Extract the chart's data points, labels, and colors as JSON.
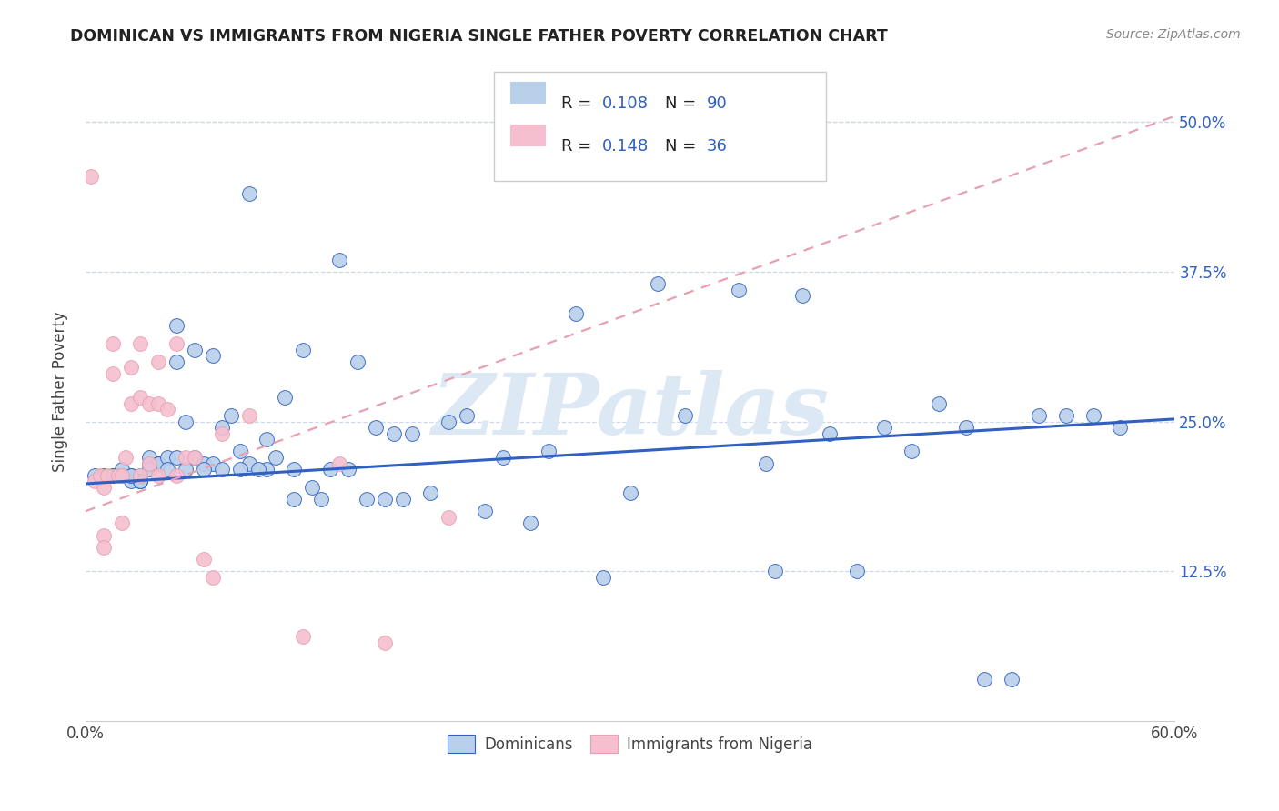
{
  "title": "DOMINICAN VS IMMIGRANTS FROM NIGERIA SINGLE FATHER POVERTY CORRELATION CHART",
  "source": "Source: ZipAtlas.com",
  "ylabel": "Single Father Poverty",
  "yticks": [
    0.0,
    0.125,
    0.25,
    0.375,
    0.5
  ],
  "ytick_labels": [
    "",
    "12.5%",
    "25.0%",
    "37.5%",
    "50.0%"
  ],
  "xlim": [
    0.0,
    0.6
  ],
  "ylim": [
    0.0,
    0.55
  ],
  "blue_color": "#b8d0ea",
  "pink_color": "#f5bfcf",
  "trend_blue": "#3060c0",
  "trend_pink": "#e8a0b0",
  "text_blue": "#3060c0",
  "grid_color": "#d0d8e8",
  "watermark": "ZIPatlas",
  "watermark_color": "#dde8f5",
  "blue_trend_start": 0.198,
  "blue_trend_end": 0.252,
  "pink_trend_start": 0.175,
  "pink_trend_end": 0.505,
  "blue_x": [
    0.005,
    0.01,
    0.01,
    0.015,
    0.02,
    0.02,
    0.02,
    0.02,
    0.025,
    0.025,
    0.03,
    0.03,
    0.03,
    0.03,
    0.035,
    0.035,
    0.04,
    0.04,
    0.04,
    0.045,
    0.05,
    0.05,
    0.05,
    0.055,
    0.06,
    0.06,
    0.065,
    0.07,
    0.07,
    0.075,
    0.08,
    0.085,
    0.09,
    0.09,
    0.1,
    0.1,
    0.105,
    0.11,
    0.115,
    0.12,
    0.125,
    0.13,
    0.135,
    0.14,
    0.145,
    0.15,
    0.155,
    0.16,
    0.165,
    0.17,
    0.175,
    0.18,
    0.19,
    0.2,
    0.21,
    0.22,
    0.23,
    0.245,
    0.255,
    0.27,
    0.285,
    0.3,
    0.315,
    0.33,
    0.36,
    0.375,
    0.38,
    0.395,
    0.41,
    0.425,
    0.44,
    0.455,
    0.47,
    0.485,
    0.495,
    0.51,
    0.525,
    0.54,
    0.555,
    0.57,
    0.015,
    0.025,
    0.035,
    0.045,
    0.055,
    0.065,
    0.075,
    0.085,
    0.095,
    0.115
  ],
  "blue_y": [
    0.205,
    0.205,
    0.205,
    0.205,
    0.205,
    0.205,
    0.205,
    0.21,
    0.2,
    0.205,
    0.2,
    0.2,
    0.205,
    0.2,
    0.215,
    0.22,
    0.215,
    0.215,
    0.215,
    0.22,
    0.33,
    0.3,
    0.22,
    0.25,
    0.31,
    0.22,
    0.215,
    0.305,
    0.215,
    0.245,
    0.255,
    0.225,
    0.44,
    0.215,
    0.235,
    0.21,
    0.22,
    0.27,
    0.185,
    0.31,
    0.195,
    0.185,
    0.21,
    0.385,
    0.21,
    0.3,
    0.185,
    0.245,
    0.185,
    0.24,
    0.185,
    0.24,
    0.19,
    0.25,
    0.255,
    0.175,
    0.22,
    0.165,
    0.225,
    0.34,
    0.12,
    0.19,
    0.365,
    0.255,
    0.36,
    0.215,
    0.125,
    0.355,
    0.24,
    0.125,
    0.245,
    0.225,
    0.265,
    0.245,
    0.035,
    0.035,
    0.255,
    0.255,
    0.255,
    0.245,
    0.205,
    0.205,
    0.21,
    0.21,
    0.21,
    0.21,
    0.21,
    0.21,
    0.21,
    0.21
  ],
  "pink_x": [
    0.003,
    0.005,
    0.008,
    0.01,
    0.01,
    0.01,
    0.012,
    0.015,
    0.015,
    0.018,
    0.02,
    0.02,
    0.022,
    0.025,
    0.025,
    0.03,
    0.03,
    0.03,
    0.035,
    0.035,
    0.04,
    0.04,
    0.04,
    0.045,
    0.05,
    0.05,
    0.055,
    0.06,
    0.065,
    0.07,
    0.075,
    0.09,
    0.12,
    0.14,
    0.165,
    0.2
  ],
  "pink_y": [
    0.455,
    0.2,
    0.205,
    0.195,
    0.155,
    0.145,
    0.205,
    0.315,
    0.29,
    0.205,
    0.205,
    0.165,
    0.22,
    0.295,
    0.265,
    0.315,
    0.27,
    0.205,
    0.265,
    0.215,
    0.3,
    0.265,
    0.205,
    0.26,
    0.315,
    0.205,
    0.22,
    0.22,
    0.135,
    0.12,
    0.24,
    0.255,
    0.07,
    0.215,
    0.065,
    0.17
  ]
}
